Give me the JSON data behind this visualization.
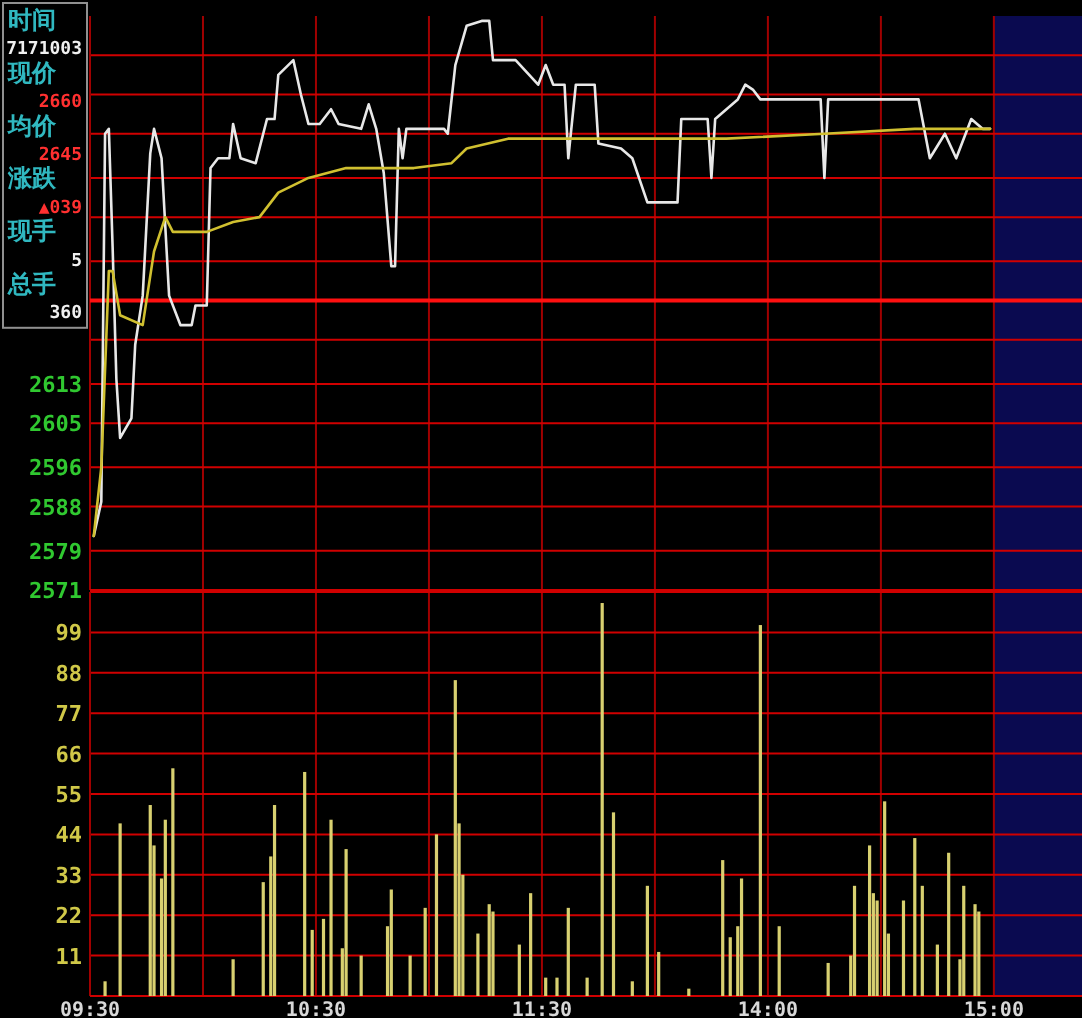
{
  "chart_data": [
    {
      "type": "line",
      "ylim": [
        2571,
        2688
      ],
      "categories": [
        null,
        null,
        null,
        null,
        null,
        null,
        null,
        null,
        null,
        null,
        null,
        null,
        null,
        null,
        null,
        null,
        null,
        null,
        null,
        null,
        null,
        null,
        null,
        null,
        null,
        null,
        null,
        null,
        null,
        null,
        null,
        null,
        null,
        null,
        null,
        null,
        null,
        null,
        null,
        null,
        null,
        null,
        null,
        null,
        null,
        null,
        null,
        null,
        null,
        null,
        null,
        null,
        null,
        null,
        null,
        null,
        null,
        null,
        null,
        null,
        null,
        null,
        null,
        null,
        null,
        null,
        null,
        null,
        null,
        null,
        null,
        null,
        null,
        null,
        null,
        null,
        null,
        null,
        null,
        null,
        null,
        null,
        null,
        null,
        null,
        null,
        null,
        null,
        null,
        null,
        null,
        null,
        null,
        null,
        null,
        null,
        null,
        null,
        null,
        null,
        null,
        null,
        null,
        null,
        null,
        null,
        null,
        null,
        null,
        null,
        null,
        null,
        null,
        null,
        null,
        null,
        null,
        null,
        null,
        null,
        null,
        null,
        null,
        null,
        null,
        null,
        null,
        null,
        null,
        null,
        null,
        null,
        null,
        null,
        null,
        null,
        null,
        null,
        null,
        null,
        null,
        null,
        null,
        null,
        null,
        null,
        null,
        null,
        null,
        null,
        null,
        null,
        null,
        null,
        null,
        null,
        null,
        null,
        null,
        null,
        null,
        null,
        null,
        null,
        null,
        null,
        null,
        null,
        null,
        null,
        null,
        null,
        null,
        null,
        null,
        null,
        null,
        null,
        null,
        null,
        null,
        null,
        null,
        null,
        null,
        null,
        null,
        null,
        null,
        null,
        null,
        null,
        null,
        null,
        null,
        null,
        null,
        null,
        null,
        null,
        null,
        null,
        null,
        null,
        null,
        null,
        null,
        null,
        null,
        null,
        null,
        null,
        null,
        null,
        null,
        null,
        null,
        null,
        null,
        null,
        null,
        null,
        null,
        null,
        null,
        null,
        null,
        null,
        null,
        null,
        null,
        null,
        null,
        null,
        null,
        null,
        null,
        null,
        null,
        null,
        null,
        null,
        null,
        null,
        null,
        null,
        null,
        null,
        null,
        null,
        null,
        null,
        null,
        null,
        null,
        null,
        null,
        null,
        null,
        null,
        null,
        null,
        null,
        null
      ],
      "yticks": [
        2571,
        2579,
        2588,
        2596,
        2605,
        2613,
        {
          "value": 2622,
          "label": null
        },
        {
          "value": 2630,
          "label": null
        },
        {
          "value": 2638,
          "label": null
        },
        {
          "value": 2647,
          "label": null
        },
        {
          "value": 2655,
          "label": null
        },
        {
          "value": 2664,
          "label": null
        },
        {
          "value": 2672,
          "label": null
        },
        {
          "value": 2680,
          "label": null
        }
      ],
      "tick_labels": "y",
      "grid": true,
      "marker": "none",
      "line_style": "solid",
      "series": [
        {
          "color": "#e8e8e8",
          "values": [
            null,
            2582,
            null,
            2589,
            2664,
            2665,
            2641,
            2614,
            2602,
            null,
            null,
            2606,
            2621,
            null,
            2631,
            null,
            2660,
            2665,
            null,
            2659,
            null,
            2631,
            null,
            null,
            2625,
            null,
            null,
            2625,
            2629,
            null,
            null,
            2629,
            2657,
            null,
            2659,
            null,
            null,
            2659,
            2666,
            null,
            2659,
            null,
            null,
            null,
            2658,
            null,
            null,
            2667,
            null,
            2667,
            2676,
            null,
            null,
            null,
            2679,
            null,
            2672,
            null,
            2666,
            null,
            null,
            2666,
            null,
            null,
            2669,
            null,
            2666,
            null,
            null,
            null,
            null,
            null,
            2665,
            null,
            2670,
            null,
            2665,
            null,
            2656,
            null,
            2637,
            2637,
            2665,
            2659,
            2665,
            null,
            null,
            null,
            null,
            null,
            null,
            null,
            null,
            null,
            2665,
            2664,
            null,
            2678,
            null,
            null,
            2686,
            null,
            null,
            null,
            2687,
            null,
            2687,
            2679,
            null,
            null,
            null,
            null,
            null,
            2679,
            null,
            null,
            null,
            null,
            null,
            2674,
            null,
            2678,
            null,
            2674,
            null,
            null,
            2674,
            2659,
            null,
            2674,
            null,
            null,
            null,
            null,
            2674,
            2662,
            null,
            null,
            null,
            null,
            null,
            2661,
            null,
            null,
            2659,
            null,
            null,
            null,
            2650,
            null,
            null,
            null,
            null,
            null,
            null,
            null,
            2650,
            2667,
            null,
            null,
            null,
            null,
            null,
            null,
            2667,
            2655,
            2667,
            null,
            null,
            null,
            null,
            null,
            2671,
            null,
            2674,
            null,
            2673,
            null,
            2671,
            null,
            null,
            null,
            null,
            null,
            null,
            null,
            null,
            null,
            null,
            null,
            null,
            null,
            null,
            null,
            2671,
            2655,
            2671,
            null,
            null,
            null,
            null,
            null,
            null,
            null,
            null,
            null,
            null,
            null,
            null,
            null,
            null,
            null,
            null,
            null,
            null,
            null,
            null,
            null,
            null,
            null,
            2671,
            null,
            null,
            2659,
            null,
            null,
            null,
            2664,
            null,
            null,
            2659,
            null,
            null,
            null,
            2667,
            null,
            null,
            2665,
            null,
            2665,
            null,
            null,
            null,
            null,
            null,
            null,
            null,
            null,
            null,
            null,
            null,
            null,
            null,
            null,
            null,
            null,
            null,
            null,
            null,
            null,
            null,
            null,
            null,
            null
          ]
        },
        {
          "color": "#d0c030",
          "values": [
            null,
            2582,
            null,
            2596,
            null,
            2636,
            2636,
            null,
            2627,
            null,
            null,
            null,
            null,
            null,
            2625,
            null,
            null,
            2640,
            null,
            null,
            2647,
            null,
            2644,
            null,
            null,
            null,
            null,
            null,
            null,
            null,
            null,
            2644,
            null,
            null,
            null,
            null,
            null,
            null,
            2646,
            null,
            null,
            null,
            null,
            null,
            null,
            2647,
            null,
            null,
            null,
            null,
            2652,
            null,
            null,
            null,
            null,
            null,
            null,
            null,
            2655,
            null,
            null,
            null,
            null,
            null,
            null,
            null,
            null,
            null,
            2657,
            null,
            null,
            null,
            null,
            null,
            null,
            null,
            null,
            null,
            null,
            2657,
            null,
            null,
            null,
            null,
            null,
            null,
            2657,
            null,
            null,
            null,
            null,
            null,
            null,
            null,
            null,
            null,
            2658,
            null,
            null,
            null,
            2661,
            null,
            null,
            null,
            null,
            null,
            null,
            null,
            null,
            null,
            null,
            2663,
            null,
            null,
            null,
            null,
            null,
            null,
            null,
            null,
            null,
            null,
            null,
            null,
            null,
            2663,
            null,
            null,
            null,
            null,
            null,
            null,
            null,
            null,
            null,
            null,
            null,
            null,
            null,
            null,
            null,
            null,
            null,
            null,
            null,
            null,
            null,
            null,
            2663,
            null,
            null,
            null,
            null,
            null,
            null,
            null,
            null,
            null,
            null,
            null,
            null,
            null,
            null,
            null,
            null,
            null,
            null,
            null,
            null,
            2663,
            null,
            null,
            null,
            null,
            null,
            null,
            null,
            null,
            null,
            null,
            null,
            null,
            null,
            null,
            null,
            null,
            null,
            null,
            null,
            null,
            null,
            null,
            null,
            null,
            null,
            2664,
            null,
            null,
            null,
            null,
            null,
            null,
            null,
            null,
            null,
            null,
            null,
            null,
            null,
            null,
            null,
            null,
            null,
            null,
            null,
            null,
            null,
            null,
            null,
            2665,
            null,
            null,
            null,
            null,
            null,
            null,
            null,
            null,
            null,
            null,
            null,
            null,
            null,
            null,
            null,
            null,
            null,
            null,
            null,
            2665,
            null,
            null,
            null,
            null,
            null,
            null,
            null,
            null,
            null,
            null,
            null,
            null,
            null,
            null,
            null,
            null,
            null,
            null,
            null,
            null,
            null,
            null,
            null,
            null
          ]
        }
      ],
      "ref_lines": [
        {
          "axis": "y",
          "value": 2630,
          "color": "#ff1010"
        }
      ],
      "annotations": [
        "时间",
        "7171003",
        "现价",
        "2660",
        "均价",
        "2645",
        "涨跌",
        "▲039",
        "现手",
        "5",
        "总手",
        "360"
      ]
    },
    {
      "type": "bar",
      "ylim": [
        0,
        110
      ],
      "categories": [
        "09:30",
        null,
        null,
        null,
        null,
        null,
        null,
        null,
        null,
        null,
        null,
        null,
        null,
        null,
        null,
        null,
        null,
        null,
        null,
        null,
        null,
        null,
        null,
        null,
        null,
        null,
        null,
        null,
        null,
        null,
        null,
        null,
        null,
        null,
        null,
        null,
        null,
        null,
        null,
        null,
        null,
        null,
        null,
        null,
        null,
        null,
        null,
        null,
        null,
        null,
        null,
        null,
        null,
        null,
        null,
        null,
        null,
        null,
        null,
        null,
        "10:30",
        null,
        null,
        null,
        null,
        null,
        null,
        null,
        null,
        null,
        null,
        null,
        null,
        null,
        null,
        null,
        null,
        null,
        null,
        null,
        null,
        null,
        null,
        null,
        null,
        null,
        null,
        null,
        null,
        null,
        null,
        null,
        null,
        null,
        null,
        null,
        null,
        null,
        null,
        null,
        null,
        null,
        null,
        null,
        null,
        null,
        null,
        null,
        null,
        null,
        null,
        null,
        null,
        null,
        null,
        null,
        null,
        null,
        null,
        null,
        "11:30",
        null,
        null,
        null,
        null,
        null,
        null,
        null,
        null,
        null,
        null,
        null,
        null,
        null,
        null,
        null,
        null,
        null,
        null,
        null,
        null,
        null,
        null,
        null,
        null,
        null,
        null,
        null,
        null,
        null,
        null,
        null,
        null,
        null,
        null,
        null,
        null,
        null,
        null,
        null,
        null,
        null,
        null,
        null,
        null,
        null,
        null,
        null,
        null,
        null,
        null,
        null,
        null,
        null,
        null,
        null,
        null,
        null,
        null,
        null,
        "14:00",
        null,
        null,
        null,
        null,
        null,
        null,
        null,
        null,
        null,
        null,
        null,
        null,
        null,
        null,
        null,
        null,
        null,
        null,
        null,
        null,
        null,
        null,
        null,
        null,
        null,
        null,
        null,
        null,
        null,
        null,
        null,
        null,
        null,
        null,
        null,
        null,
        null,
        null,
        null,
        null,
        null,
        null,
        null,
        null,
        null,
        null,
        null,
        null,
        null,
        null,
        null,
        null,
        null,
        null,
        null,
        null,
        null,
        null,
        null,
        "15:00",
        null,
        null,
        null,
        null,
        null,
        null,
        null,
        null,
        null,
        null,
        null,
        null,
        null,
        null,
        null,
        null,
        null,
        null,
        null,
        null,
        null,
        null,
        null
      ],
      "yticks": [
        11,
        22,
        33,
        44,
        55,
        66,
        77,
        88,
        99,
        {
          "value": 110,
          "label": null
        }
      ],
      "grid": true,
      "color": "#d8d070",
      "values": [
        null,
        null,
        null,
        null,
        4,
        null,
        null,
        null,
        47,
        null,
        null,
        null,
        null,
        null,
        null,
        null,
        52,
        41,
        null,
        32,
        48,
        null,
        62,
        null,
        null,
        null,
        null,
        null,
        null,
        null,
        null,
        null,
        null,
        null,
        null,
        null,
        null,
        null,
        10,
        null,
        null,
        null,
        null,
        null,
        null,
        null,
        31,
        null,
        38,
        52,
        null,
        null,
        null,
        null,
        null,
        null,
        null,
        61,
        null,
        18,
        null,
        null,
        21,
        null,
        48,
        null,
        null,
        13,
        40,
        null,
        null,
        null,
        11,
        null,
        null,
        null,
        null,
        null,
        null,
        19,
        29,
        null,
        null,
        null,
        null,
        11,
        null,
        null,
        null,
        24,
        null,
        null,
        44,
        null,
        null,
        null,
        null,
        86,
        47,
        33,
        null,
        null,
        null,
        17,
        null,
        null,
        25,
        23,
        null,
        null,
        null,
        null,
        null,
        null,
        14,
        null,
        null,
        28,
        null,
        null,
        null,
        5,
        null,
        null,
        5,
        null,
        null,
        24,
        null,
        null,
        null,
        null,
        5,
        null,
        null,
        null,
        107,
        null,
        null,
        50,
        null,
        null,
        null,
        null,
        4,
        null,
        null,
        null,
        30,
        null,
        null,
        12,
        null,
        null,
        null,
        null,
        null,
        null,
        null,
        2,
        null,
        null,
        null,
        null,
        null,
        null,
        null,
        null,
        37,
        null,
        16,
        null,
        19,
        32,
        null,
        null,
        null,
        null,
        101,
        null,
        null,
        null,
        null,
        19,
        null,
        null,
        null,
        null,
        null,
        null,
        null,
        null,
        null,
        null,
        null,
        null,
        9,
        null,
        null,
        null,
        null,
        null,
        11,
        30,
        null,
        null,
        null,
        41,
        28,
        26,
        null,
        53,
        17,
        null,
        null,
        null,
        26,
        null,
        null,
        43,
        null,
        30,
        null,
        null,
        null,
        14,
        null,
        null,
        39,
        null,
        null,
        10,
        30,
        null,
        null,
        25,
        23,
        null,
        null,
        null,
        null,
        null,
        null,
        null,
        null,
        null,
        null,
        null,
        null,
        null,
        null,
        null,
        null,
        null,
        null,
        null,
        null,
        null,
        null,
        null,
        null,
        null,
        null,
        null
      ]
    }
  ]
}
